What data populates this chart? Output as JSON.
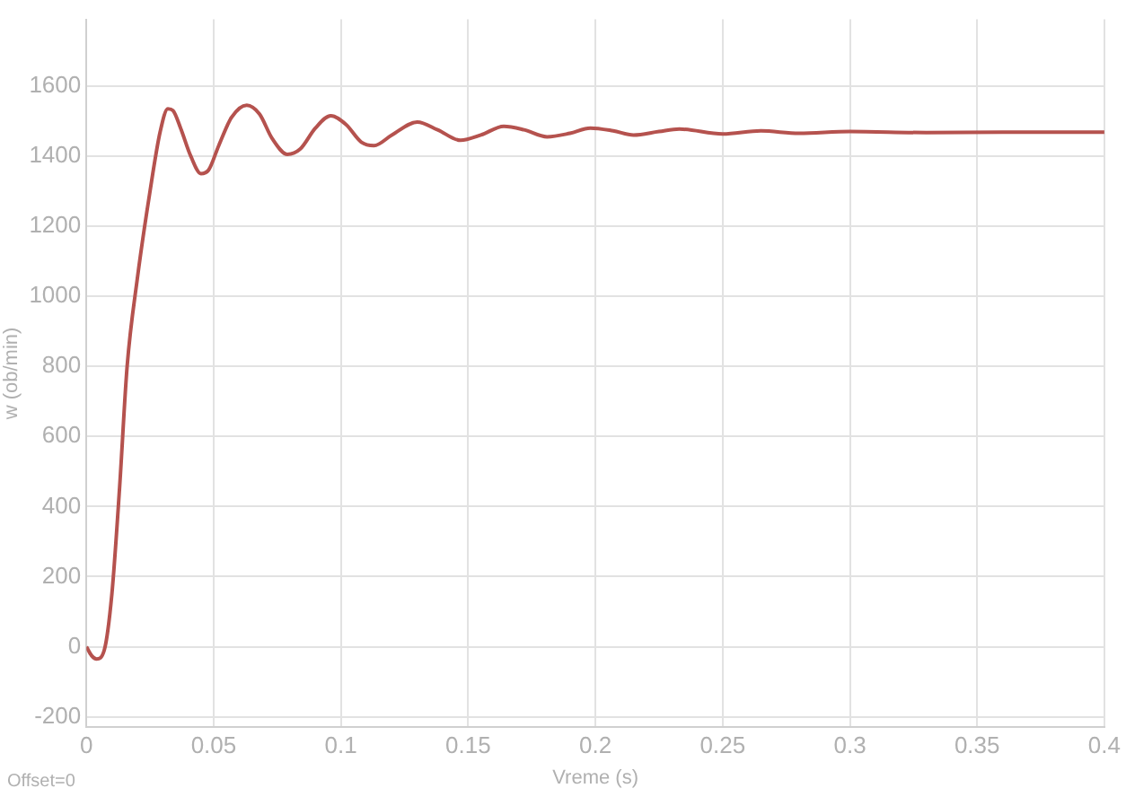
{
  "chart_data": {
    "type": "line",
    "xlabel": "Vreme (s)",
    "ylabel": "w (ob/min)",
    "annotations": [
      "Offset=0"
    ],
    "x": [
      0,
      0.002,
      0.004,
      0.007,
      0.01,
      0.013,
      0.016,
      0.02,
      0.025,
      0.029,
      0.032,
      0.034,
      0.037,
      0.041,
      0.045,
      0.048,
      0.052,
      0.057,
      0.063,
      0.068,
      0.073,
      0.079,
      0.084,
      0.09,
      0.096,
      0.102,
      0.108,
      0.113,
      0.12,
      0.13,
      0.138,
      0.147,
      0.155,
      0.164,
      0.172,
      0.181,
      0.19,
      0.198,
      0.207,
      0.215,
      0.225,
      0.233,
      0.25,
      0.265,
      0.28,
      0.3,
      0.33,
      0.36,
      0.4
    ],
    "series": [
      {
        "color": "#b5524e",
        "values": [
          0,
          -25,
          -35,
          -10,
          150,
          450,
          800,
          1050,
          1300,
          1470,
          1535,
          1530,
          1480,
          1400,
          1350,
          1360,
          1430,
          1510,
          1545,
          1520,
          1450,
          1405,
          1420,
          1480,
          1515,
          1490,
          1440,
          1430,
          1460,
          1497,
          1475,
          1445,
          1460,
          1485,
          1475,
          1455,
          1465,
          1480,
          1472,
          1460,
          1470,
          1477,
          1463,
          1472,
          1465,
          1470,
          1467,
          1468,
          1468
        ]
      }
    ],
    "xlim": [
      0,
      0.4
    ],
    "xticks": [
      0,
      0.05,
      0.1,
      0.15,
      0.2,
      0.25,
      0.3,
      0.35,
      0.4
    ],
    "ylim": [
      -230,
      1790
    ],
    "yticks": [
      -200,
      0,
      200,
      400,
      600,
      800,
      1000,
      1200,
      1400,
      1600
    ],
    "grid": true,
    "legend": false,
    "marker": "none",
    "line_style": "solid"
  }
}
